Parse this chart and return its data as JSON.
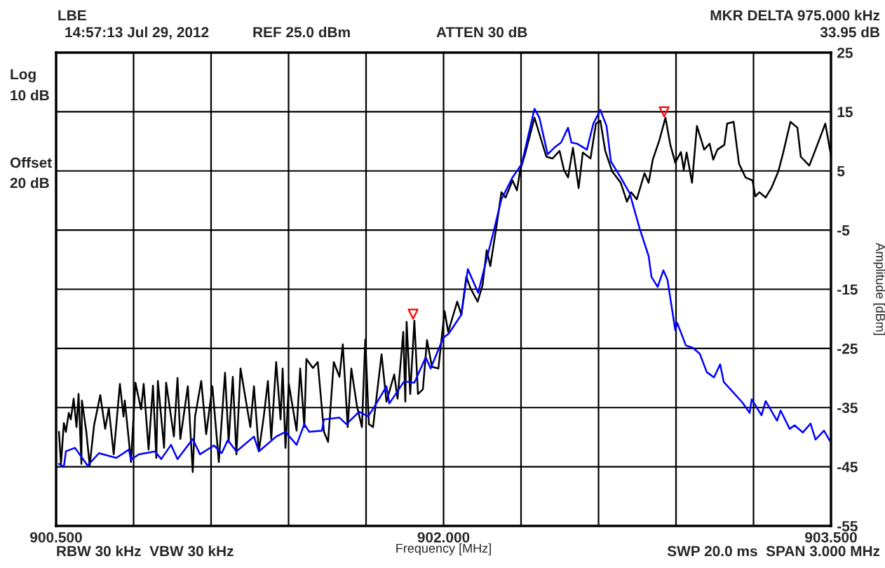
{
  "chart_data": {
    "type": "line",
    "xlabel": "Frequency [MHz]",
    "ylabel": "Amplitude [dBm]",
    "annotations": [
      "LBE",
      "14:57:13 Jul 29, 2012",
      "REF 25.0 dBm",
      "ATTEN 30 dB",
      "MKR DELTA 975.000 kHz",
      "33.95 dB",
      "Log",
      "10 dB",
      "Offset",
      "20 dB",
      "RBW 30 kHz  VBW 30 kHz",
      "SWP 20.0 ms  SPAN 3.000 MHz"
    ],
    "xlim": [
      900.5,
      903.5
    ],
    "xticks": [
      {
        "value": 900.5,
        "label": "900.500"
      },
      {
        "value": 900.8,
        "label": null
      },
      {
        "value": 901.1,
        "label": null
      },
      {
        "value": 901.4,
        "label": null
      },
      {
        "value": 901.7,
        "label": null
      },
      {
        "value": 902.0,
        "label": "902.000"
      },
      {
        "value": 902.3,
        "label": null
      },
      {
        "value": 902.6,
        "label": null
      },
      {
        "value": 902.9,
        "label": null
      },
      {
        "value": 903.2,
        "label": null
      },
      {
        "value": 903.5,
        "label": "903.500"
      }
    ],
    "ylim": [
      -55,
      25
    ],
    "yticks": [
      -55,
      -45,
      -35,
      -25,
      -15,
      -5,
      5,
      15,
      25
    ],
    "grid": true,
    "line_style": "solid",
    "series": [
      {
        "color": "#000000",
        "x": [
          900.511,
          900.519,
          900.53,
          900.538,
          900.549,
          900.557,
          900.568,
          900.579,
          900.587,
          900.598,
          900.6,
          900.617,
          900.63,
          900.647,
          900.671,
          900.69,
          900.704,
          900.723,
          900.747,
          900.761,
          900.766,
          900.79,
          900.807,
          900.829,
          900.839,
          900.858,
          900.875,
          900.888,
          900.894,
          900.918,
          900.926,
          900.956,
          900.97,
          900.981,
          901.01,
          901.029,
          901.038,
          901.062,
          901.081,
          901.105,
          901.13,
          901.154,
          901.168,
          901.184,
          901.198,
          901.214,
          901.252,
          901.266,
          901.285,
          901.304,
          901.32,
          901.333,
          901.352,
          901.369,
          901.377,
          901.388,
          901.401,
          901.431,
          901.445,
          901.461,
          901.469,
          901.494,
          901.513,
          901.537,
          901.553,
          901.575,
          901.597,
          901.61,
          901.629,
          901.643,
          901.665,
          901.684,
          901.697,
          901.711,
          901.727,
          901.76,
          901.779,
          901.809,
          901.822,
          901.844,
          901.852,
          901.857,
          901.871,
          901.887,
          901.901,
          901.92,
          901.936,
          901.955,
          901.98,
          902.004,
          902.018,
          902.053,
          902.069,
          902.088,
          902.104,
          902.132,
          902.151,
          902.167,
          902.181,
          902.205,
          902.224,
          902.24,
          902.267,
          902.284,
          902.297,
          902.314,
          902.352,
          902.398,
          902.422,
          902.449,
          902.466,
          902.482,
          902.501,
          902.523,
          902.539,
          902.569,
          902.59,
          902.607,
          902.626,
          902.653,
          902.686,
          902.71,
          902.726,
          902.748,
          902.778,
          902.794,
          902.81,
          902.835,
          902.859,
          902.878,
          902.897,
          902.919,
          902.93,
          902.941,
          902.962,
          902.981,
          903.009,
          903.03,
          903.044,
          903.06,
          903.087,
          903.098,
          903.123,
          903.144,
          903.169,
          903.196,
          903.207,
          903.223,
          903.247,
          903.269,
          903.296,
          903.315,
          903.343,
          903.37,
          903.383,
          903.416,
          903.44,
          903.478,
          903.5
        ],
        "values": [
          -39.1,
          -44.5,
          -37.6,
          -39.1,
          -35.9,
          -37.0,
          -33.5,
          -38.3,
          -32.7,
          -44.5,
          -33.8,
          -39.1,
          -44.8,
          -38.0,
          -32.9,
          -38.6,
          -35.1,
          -42.9,
          -31.0,
          -36.5,
          -33.8,
          -44.2,
          -30.8,
          -35.3,
          -31.0,
          -42.1,
          -31.3,
          -43.5,
          -30.5,
          -41.8,
          -30.8,
          -39.9,
          -30.0,
          -40.3,
          -31.4,
          -45.9,
          -36.5,
          -30.5,
          -39.5,
          -31.4,
          -44.2,
          -29.1,
          -40.8,
          -29.8,
          -42.9,
          -28.4,
          -38.3,
          -31.4,
          -42.4,
          -36.5,
          -30.5,
          -40.3,
          -27.3,
          -37.0,
          -28.4,
          -41.8,
          -31.0,
          -38.9,
          -28.4,
          -38.3,
          -26.8,
          -28.3,
          -27.3,
          -39.1,
          -40.8,
          -27.3,
          -29.8,
          -24.3,
          -38.3,
          -28.4,
          -34.8,
          -38.3,
          -23.5,
          -37.8,
          -38.3,
          -26.0,
          -34.0,
          -29.4,
          -33.5,
          -22.2,
          -34.0,
          -20.5,
          -32.7,
          -20.3,
          -32.7,
          -31.9,
          -23.6,
          -28.1,
          -28.4,
          -18.7,
          -22.2,
          -17.1,
          -19.3,
          -12.9,
          -14.8,
          -17.1,
          -14.3,
          -8.4,
          -11.1,
          -4.3,
          1.4,
          0.5,
          3.4,
          1.7,
          5.2,
          7.6,
          14.0,
          7.4,
          7.1,
          8.4,
          5.2,
          3.9,
          8.9,
          2.1,
          8.1,
          7.1,
          13.0,
          13.5,
          8.4,
          4.9,
          3.0,
          -0.2,
          1.4,
          0.2,
          4.6,
          3.0,
          6.9,
          10.1,
          14.0,
          9.4,
          6.4,
          8.2,
          5.2,
          8.1,
          3.0,
          12.6,
          8.6,
          9.6,
          6.9,
          8.6,
          9.4,
          13.0,
          13.3,
          6.2,
          3.9,
          3.4,
          0.7,
          1.4,
          0.5,
          2.1,
          4.9,
          8.1,
          13.3,
          12.3,
          7.4,
          5.9,
          8.6,
          13.0,
          7.6
        ]
      },
      {
        "color": "#0000ff",
        "x": [
          900.511,
          900.53,
          900.538,
          900.573,
          900.622,
          900.666,
          900.733,
          900.782,
          900.79,
          900.82,
          900.883,
          900.907,
          900.945,
          900.97,
          901.029,
          901.057,
          901.111,
          901.141,
          901.165,
          901.198,
          901.266,
          901.285,
          901.352,
          901.388,
          901.431,
          901.461,
          901.48,
          901.529,
          901.537,
          901.597,
          901.624,
          901.673,
          901.708,
          901.733,
          901.779,
          901.79,
          901.847,
          901.887,
          901.931,
          901.95,
          901.999,
          902.02,
          902.069,
          902.094,
          902.134,
          902.194,
          902.224,
          902.267,
          902.303,
          902.352,
          902.371,
          902.403,
          902.433,
          902.455,
          902.482,
          902.495,
          902.517,
          902.555,
          902.58,
          902.607,
          902.631,
          902.648,
          902.686,
          902.721,
          902.759,
          902.794,
          902.805,
          902.829,
          902.851,
          902.867,
          902.897,
          902.905,
          902.938,
          902.965,
          902.992,
          903.019,
          903.047,
          903.071,
          903.085,
          903.117,
          903.158,
          903.185,
          903.193,
          903.231,
          903.247,
          903.291,
          903.305,
          903.34,
          903.359,
          903.391,
          903.421,
          903.44,
          903.473,
          903.495,
          903.5
        ],
        "values": [
          -44.5,
          -45.0,
          -42.4,
          -41.8,
          -44.8,
          -42.7,
          -43.5,
          -42.1,
          -43.8,
          -42.9,
          -42.4,
          -43.7,
          -41.3,
          -43.7,
          -40.3,
          -42.9,
          -41.4,
          -42.7,
          -40.5,
          -42.4,
          -39.9,
          -42.4,
          -39.9,
          -39.1,
          -41.3,
          -37.8,
          -39.1,
          -38.9,
          -37.0,
          -36.7,
          -37.8,
          -35.7,
          -36.5,
          -34.8,
          -31.4,
          -34.3,
          -30.6,
          -30.8,
          -26.5,
          -28.4,
          -23.2,
          -22.5,
          -19.3,
          -11.6,
          -15.6,
          -5.2,
          0.2,
          3.9,
          6.2,
          15.5,
          14.0,
          7.8,
          9.1,
          9.8,
          12.3,
          9.8,
          9.6,
          8.6,
          13.0,
          15.3,
          12.6,
          6.6,
          3.9,
          1.2,
          -4.7,
          -9.4,
          -12.9,
          -14.6,
          -11.8,
          -13.4,
          -21.9,
          -20.7,
          -24.5,
          -24.9,
          -25.9,
          -29.0,
          -29.9,
          -27.7,
          -30.7,
          -32.2,
          -34.2,
          -35.9,
          -33.6,
          -36.3,
          -33.9,
          -37.2,
          -35.5,
          -38.6,
          -38.0,
          -39.2,
          -37.7,
          -40.4,
          -38.9,
          -40.6,
          -40.2
        ]
      },
      {
        "type": "scatter",
        "color": "#ff0000",
        "marker": "triangle",
        "x": [
          901.882,
          902.854
        ],
        "values": [
          -19.2,
          15.0
        ]
      }
    ]
  }
}
